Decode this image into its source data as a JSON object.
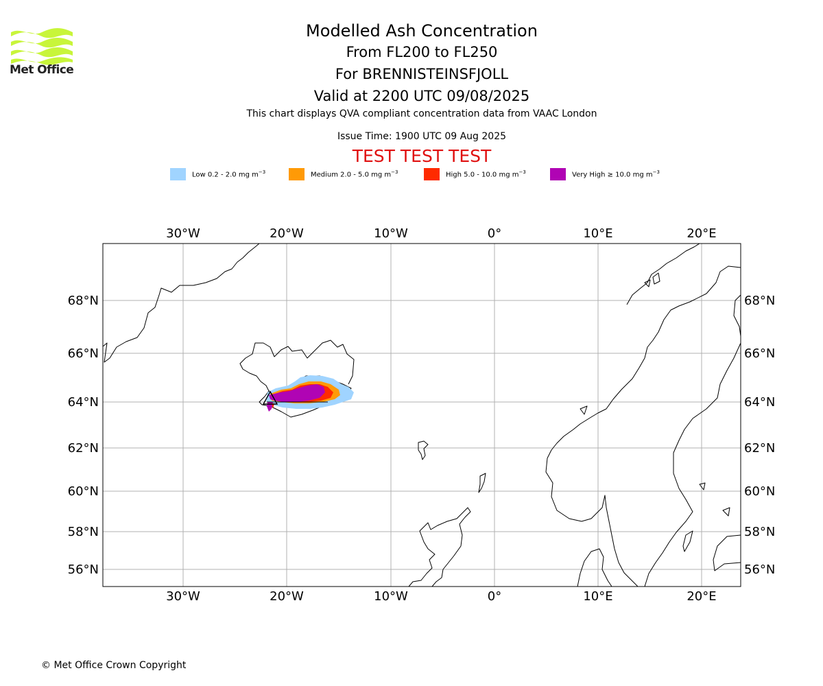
{
  "header": {
    "logo_text": "Met Office",
    "title": "Modelled Ash Concentration",
    "flight_levels": "From FL200 to FL250",
    "volcano": "For BRENNISTEINSFJOLL",
    "valid_time": "Valid at 2200 UTC 09/08/2025",
    "description": "This chart displays QVA compliant concentration data from VAAC London",
    "issue_time": "Issue Time: 1900 UTC 09 Aug 2025",
    "test_banner": "TEST TEST TEST"
  },
  "legend": [
    {
      "prefix": "Low 0.2 - 2.0 mg m",
      "exp": "−3",
      "color": "#a0d4ff"
    },
    {
      "prefix": "Medium 2.0 - 5.0 mg m",
      "exp": "−3",
      "color": "#ff9a06"
    },
    {
      "prefix": "High 5.0 - 10.0 mg m",
      "exp": "−3",
      "color": "#ff2a00"
    },
    {
      "prefix": "Very High  ≥  10.0 mg m",
      "exp": "−3",
      "color": "#b004b4"
    }
  ],
  "map": {
    "lon_labels": [
      "30°W",
      "20°W",
      "10°W",
      "0°",
      "10°E",
      "20°E"
    ],
    "lat_labels": [
      "68°N",
      "66°N",
      "64°N",
      "62°N",
      "60°N",
      "58°N",
      "56°N"
    ],
    "source_volcano_marker": "black-triangle",
    "grid": true
  },
  "footer": {
    "copyright": "© Met Office Crown Copyright"
  }
}
